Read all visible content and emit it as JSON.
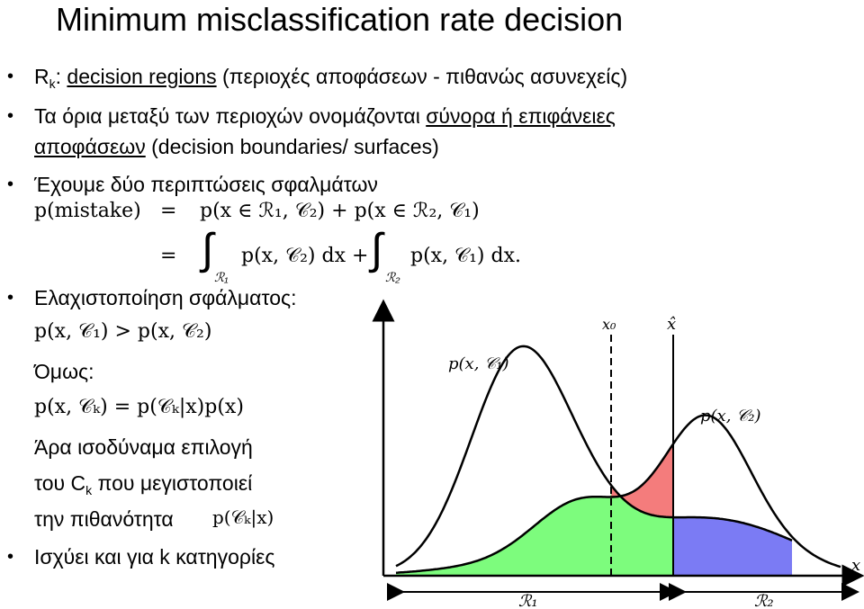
{
  "slide": {
    "title": "Minimum misclassification rate decision",
    "bullet1": {
      "sym": "R",
      "sub": "k",
      "colon": ": ",
      "link_text": "decision regions",
      "rest": " (περιοχές αποφάσεων - πιθανώς ασυνεχείς)"
    },
    "bullet2": {
      "text": "Τα όρια μεταξύ των περιοχών ονομάζονται ",
      "link_text": "σύνορα ή επιφάνειες",
      "line2_link": "αποφάσεων",
      "line2_rest": " (decision boundaries/ surfaces)"
    },
    "bullet3": "Έχουμε δύο περιπτώσεις σφαλμάτων",
    "bullet4": "Ελαχιστοποίηση σφάλματος:",
    "omos": "Όμως:",
    "ara_line1": "Άρα ισοδύναμα επιλογή",
    "ara_line2_pre": "του C",
    "ara_line2_sub": "k",
    "ara_line2_post": " που μεγιστοποιεί",
    "ara_line3": "την πιθανότητα",
    "bullet5": "Ισχύει και για k κατηγορίες"
  },
  "formula": {
    "lhs": "p(mistake)",
    "eq": "=",
    "term1": "p(x ∈ ℛ₁, 𝒞₂) + p(x ∈ ℛ₂, 𝒞₁)",
    "int1_body": "p(x, 𝒞₂) dx +",
    "int1_lim": "ℛ₁",
    "int2_body": "p(x, 𝒞₁) dx.",
    "int2_lim": "ℛ₂",
    "ineq": "p(x, 𝒞₁) > p(x, 𝒞₂)",
    "bayes": "p(x, 𝒞ₖ) = p(𝒞ₖ|x)p(x)",
    "posterior": "p(𝒞ₖ|x)"
  },
  "chart_data": {
    "type": "area",
    "curves": [
      {
        "name": "p(x, 𝒞₁)"
      },
      {
        "name": "p(x, 𝒞₂)"
      }
    ],
    "labels": {
      "x_axis": "x",
      "x0": "x₀",
      "xhat": "x̂",
      "R1": "ℛ₁",
      "R2": "ℛ₂"
    },
    "colors": {
      "red": "#f47c7c",
      "green": "#7dfc7d",
      "blue": "#7b7bf4"
    }
  }
}
